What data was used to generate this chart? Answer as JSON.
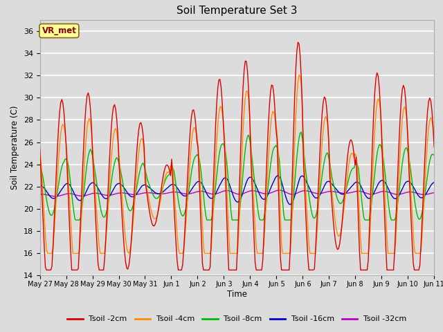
{
  "title": "Soil Temperature Set 3",
  "xlabel": "Time",
  "ylabel": "Soil Temperature (C)",
  "ylim": [
    14,
    37
  ],
  "yticks": [
    14,
    16,
    18,
    20,
    22,
    24,
    26,
    28,
    30,
    32,
    34,
    36
  ],
  "plot_bg_color": "#dcdcdc",
  "grid_color": "#ffffff",
  "series_colors": {
    "Tsoil -2cm": "#dd0000",
    "Tsoil -4cm": "#ff8c00",
    "Tsoil -8cm": "#00bb00",
    "Tsoil -16cm": "#0000cc",
    "Tsoil -32cm": "#bb00bb"
  },
  "tick_labels": [
    "May 27",
    "May 28",
    "May 29",
    "May 30",
    "May 31",
    "Jun 1",
    "Jun 2",
    "Jun 3",
    "Jun 4",
    "Jun 5",
    "Jun 6",
    "Jun 7",
    "Jun 8",
    "Jun 9",
    "Jun 10",
    "Jun 11"
  ],
  "annotation_text": "VR_met",
  "annotation_color": "#8b0000",
  "annotation_bg": "#ffff99",
  "annotation_edge": "#8b6914"
}
